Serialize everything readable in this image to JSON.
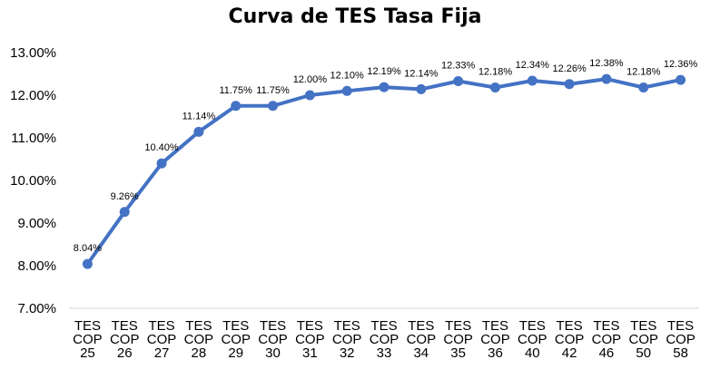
{
  "chart_data": {
    "type": "line",
    "title": "Curva de TES Tasa Fija",
    "xlabel": "",
    "ylabel": "",
    "categories": [
      [
        "TES",
        "COP",
        "25"
      ],
      [
        "TES",
        "COP",
        "26"
      ],
      [
        "TES",
        "COP",
        "27"
      ],
      [
        "TES",
        "COP",
        "28"
      ],
      [
        "TES",
        "COP",
        "29"
      ],
      [
        "TES",
        "COP",
        "30"
      ],
      [
        "TES",
        "COP",
        "31"
      ],
      [
        "TES",
        "COP",
        "32"
      ],
      [
        "TES",
        "COP",
        "33"
      ],
      [
        "TES",
        "COP",
        "34"
      ],
      [
        "TES",
        "COP",
        "35"
      ],
      [
        "TES",
        "COP",
        "36"
      ],
      [
        "TES",
        "COP",
        "40"
      ],
      [
        "TES",
        "COP",
        "42"
      ],
      [
        "TES",
        "COP",
        "46"
      ],
      [
        "TES",
        "COP",
        "50"
      ],
      [
        "TES",
        "COP",
        "58"
      ]
    ],
    "values": [
      8.04,
      9.26,
      10.4,
      11.14,
      11.75,
      11.75,
      12.0,
      12.1,
      12.19,
      12.14,
      12.33,
      12.18,
      12.34,
      12.26,
      12.38,
      12.18,
      12.36
    ],
    "data_labels": [
      "8.04%",
      "9.26%",
      "10.40%",
      "11.14%",
      "11.75%",
      "11.75%",
      "12.00%",
      "12.10%",
      "12.19%",
      "12.14%",
      "12.33%",
      "12.18%",
      "12.34%",
      "12.26%",
      "12.38%",
      "12.18%",
      "12.36%"
    ],
    "ylim": [
      7,
      13
    ],
    "yticks": [
      "7.00%",
      "8.00%",
      "9.00%",
      "10.00%",
      "11.00%",
      "12.00%",
      "13.00%"
    ],
    "ytick_values": [
      7,
      8,
      9,
      10,
      11,
      12,
      13
    ],
    "grid": false,
    "line_color": "#4472C4"
  }
}
